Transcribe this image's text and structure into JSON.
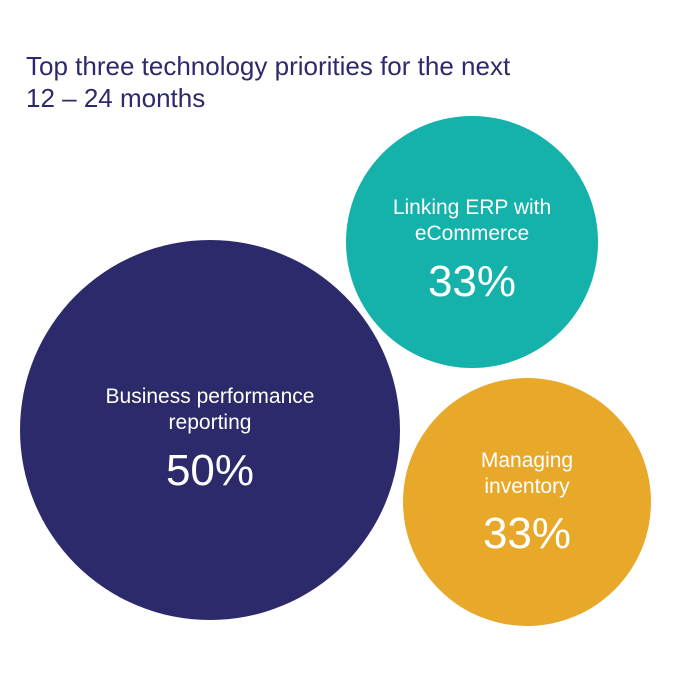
{
  "chart_data": {
    "type": "bubble",
    "title": [
      "Top three technology priorities for the next",
      "12 – 24 months"
    ],
    "series": [
      {
        "label_lines": [
          "Business performance",
          "reporting"
        ],
        "value": 50,
        "value_label": "50%",
        "color": "#2d2a6b"
      },
      {
        "label_lines": [
          "Linking ERP with",
          "eCommerce"
        ],
        "value": 33,
        "value_label": "33%",
        "color": "#14b2aa"
      },
      {
        "label_lines": [
          "Managing",
          "inventory"
        ],
        "value": 33,
        "value_label": "33%",
        "color": "#e8a82a"
      }
    ],
    "grid": false,
    "legend": "none"
  }
}
